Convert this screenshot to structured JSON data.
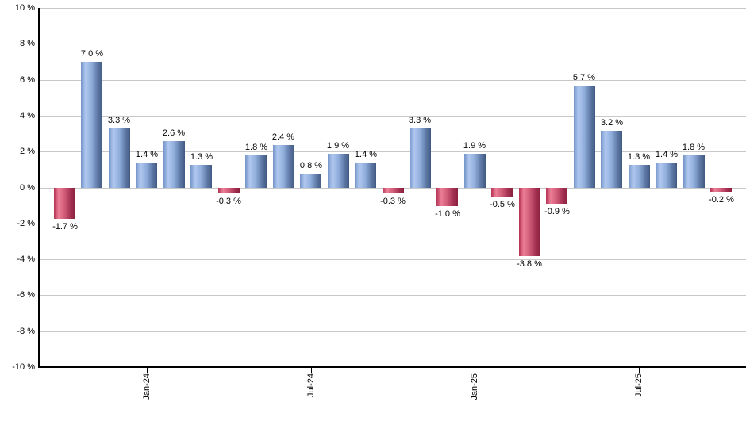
{
  "chart_data": {
    "type": "bar",
    "title": "",
    "values": [
      -1.7,
      7.0,
      3.3,
      1.4,
      2.6,
      1.3,
      -0.3,
      1.8,
      2.4,
      0.8,
      1.9,
      1.4,
      -0.3,
      3.3,
      -1.0,
      1.9,
      -0.5,
      -3.8,
      -0.9,
      5.7,
      3.2,
      1.3,
      1.4,
      1.8,
      -0.2
    ],
    "bar_labels": [
      "-1.7 %",
      "7.0 %",
      "3.3 %",
      "1.4 %",
      "2.6 %",
      "1.3 %",
      "-0.3 %",
      "1.8 %",
      "2.4 %",
      "0.8 %",
      "1.9 %",
      "1.4 %",
      "-0.3 %",
      "3.3 %",
      "-1.0 %",
      "1.9 %",
      "-0.5 %",
      "-3.8 %",
      "-0.9 %",
      "5.7 %",
      "3.2 %",
      "1.3 %",
      "1.4 %",
      "1.8 %",
      "-0.2 %"
    ],
    "x_ticks": [
      {
        "label": "Jan-24",
        "bar_index": 3
      },
      {
        "label": "Jul-24",
        "bar_index": 9
      },
      {
        "label": "Jan-25",
        "bar_index": 15
      },
      {
        "label": "Jul-25",
        "bar_index": 21
      }
    ],
    "y_ticks": [
      {
        "value": 10,
        "label": "10 %"
      },
      {
        "value": 8,
        "label": "8 %"
      },
      {
        "value": 6,
        "label": "6 %"
      },
      {
        "value": 4,
        "label": "4 %"
      },
      {
        "value": 2,
        "label": "2 %"
      },
      {
        "value": 0,
        "label": "0 %"
      },
      {
        "value": -2,
        "label": "-2 %"
      },
      {
        "value": -4,
        "label": "-4 %"
      },
      {
        "value": -6,
        "label": "-6 %"
      },
      {
        "value": -8,
        "label": "-8 %"
      },
      {
        "value": -10,
        "label": "-10 %"
      }
    ],
    "ylim": [
      -10,
      10
    ],
    "grid": true,
    "legend_position": "none",
    "colors": {
      "positive_bar_gradient": [
        "#7495c8",
        "#b0c8f0",
        "#8fadda",
        "#5e78a6",
        "#415a82"
      ],
      "negative_bar_gradient": [
        "#b43354",
        "#ec7e96",
        "#d05b77",
        "#a43152",
        "#8c1f3e"
      ],
      "gridline": "#c9c9c9",
      "axis": "#000000",
      "label_text": "#000000",
      "background": "#ffffff"
    }
  }
}
